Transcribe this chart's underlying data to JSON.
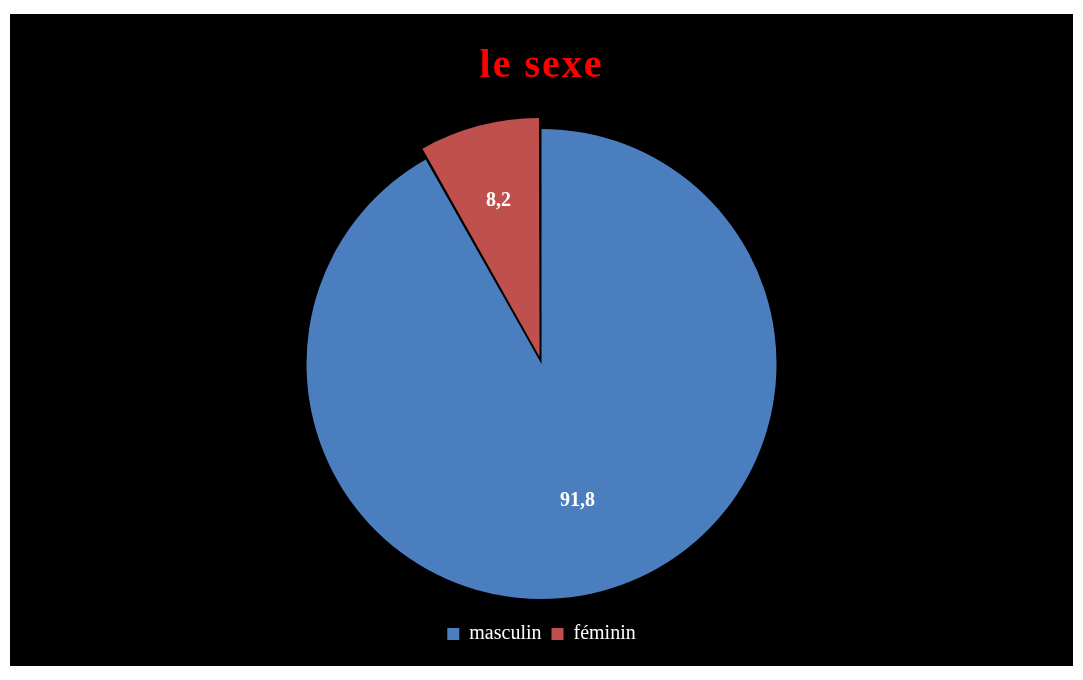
{
  "chart_data": {
    "type": "pie",
    "title": "le sexe",
    "categories": [
      "masculin",
      "féminin"
    ],
    "values": [
      91.8,
      8.2
    ],
    "colors": [
      "#4a7ebf",
      "#c0504d"
    ],
    "value_labels": [
      "91,8",
      "8,2"
    ],
    "legend": "bottom"
  }
}
